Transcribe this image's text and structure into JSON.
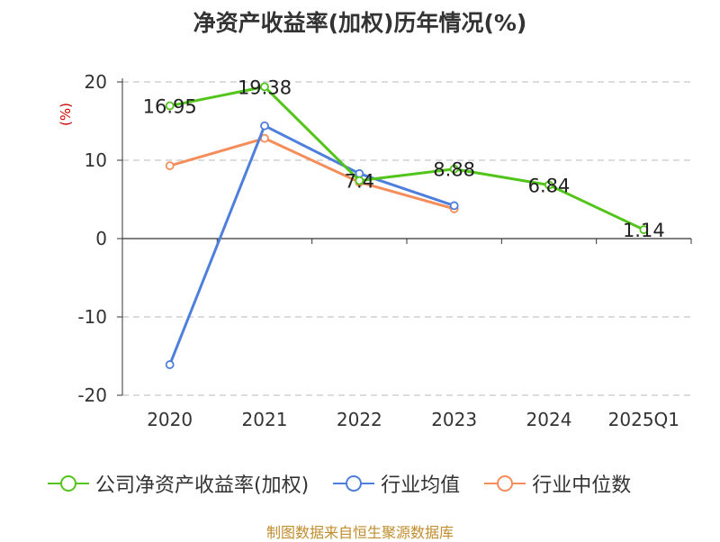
{
  "chart_data": {
    "type": "line",
    "title": "净资产收益率(加权)历年情况(%)",
    "ylabel": "(%)",
    "xlabel": "",
    "categories": [
      "2020",
      "2021",
      "2022",
      "2023",
      "2024",
      "2025Q1"
    ],
    "ylim": [
      -20,
      20
    ],
    "yticks": [
      20,
      10,
      0,
      -10,
      -20
    ],
    "grid": true,
    "legend_position": "bottom",
    "series": [
      {
        "name": "公司净资产收益率(加权)",
        "color": "#52c41a",
        "values": [
          16.95,
          19.38,
          7.4,
          8.88,
          6.84,
          1.14
        ],
        "labels": [
          "16.95",
          "19.38",
          "7.4",
          "8.88",
          "6.84",
          "1.14"
        ]
      },
      {
        "name": "行业均值",
        "color": "#4e7fdc",
        "values": [
          -16.1,
          14.4,
          8.3,
          4.2,
          null,
          null
        ]
      },
      {
        "name": "行业中位数",
        "color": "#f58d5b",
        "values": [
          9.3,
          12.8,
          7.2,
          3.8,
          null,
          null
        ]
      }
    ]
  },
  "source": "制图数据来自恒生聚源数据库"
}
